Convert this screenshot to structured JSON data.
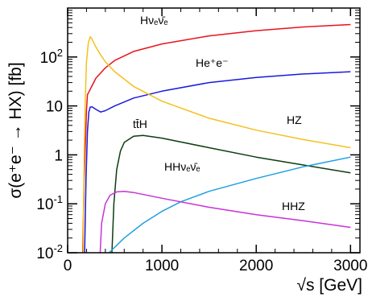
{
  "chart_data": {
    "type": "line",
    "ylabel": "σ(e⁺e⁻ → HX) [fb]",
    "xlabel": "√s [GeV]",
    "xlim": [
      0,
      3100
    ],
    "ylim": [
      0.01,
      1000
    ],
    "yscale": "log",
    "grid": false,
    "x_ticks": [
      {
        "value": 0,
        "label": "0"
      },
      {
        "value": 1000,
        "label": "1000"
      },
      {
        "value": 2000,
        "label": "2000"
      },
      {
        "value": 3000,
        "label": "3000"
      }
    ],
    "y_ticks": [
      {
        "value": 0.01,
        "label": "10-2",
        "base": "10",
        "exp": "-2"
      },
      {
        "value": 0.1,
        "label": "10-1",
        "base": "10",
        "exp": "-1"
      },
      {
        "value": 1,
        "label": "1",
        "base": "1",
        "exp": ""
      },
      {
        "value": 10,
        "label": "10",
        "base": "10",
        "exp": ""
      },
      {
        "value": 100,
        "label": "102",
        "base": "10",
        "exp": "2"
      }
    ],
    "series": [
      {
        "name": "Hνₑν̄ₑ",
        "color": "#e8141c",
        "points": [
          [
            160,
            0.01
          ],
          [
            175,
            0.3
          ],
          [
            190,
            2
          ],
          [
            200,
            8
          ],
          [
            210,
            17
          ],
          [
            230,
            20
          ],
          [
            250,
            24
          ],
          [
            300,
            37
          ],
          [
            400,
            60
          ],
          [
            500,
            85
          ],
          [
            700,
            130
          ],
          [
            1000,
            185
          ],
          [
            1500,
            270
          ],
          [
            2000,
            345
          ],
          [
            2500,
            410
          ],
          [
            3000,
            460
          ]
        ]
      },
      {
        "name": "He⁺e⁻",
        "color": "#1a1adc",
        "points": [
          [
            180,
            0.01
          ],
          [
            195,
            0.3
          ],
          [
            210,
            3
          ],
          [
            225,
            7.5
          ],
          [
            240,
            9.5
          ],
          [
            260,
            9.6
          ],
          [
            300,
            8.5
          ],
          [
            350,
            7.5
          ],
          [
            400,
            8
          ],
          [
            500,
            10
          ],
          [
            700,
            14.5
          ],
          [
            1000,
            20
          ],
          [
            1500,
            30
          ],
          [
            2000,
            38
          ],
          [
            2500,
            45
          ],
          [
            3000,
            50
          ]
        ]
      },
      {
        "name": "HZ",
        "color": "#f5c01e",
        "points": [
          [
            165,
            0.01
          ],
          [
            175,
            1
          ],
          [
            185,
            10
          ],
          [
            200,
            80
          ],
          [
            220,
            200
          ],
          [
            240,
            260
          ],
          [
            260,
            230
          ],
          [
            300,
            160
          ],
          [
            350,
            110
          ],
          [
            400,
            80
          ],
          [
            500,
            50
          ],
          [
            700,
            25
          ],
          [
            1000,
            12.5
          ],
          [
            1500,
            5.6
          ],
          [
            2000,
            3.2
          ],
          [
            2500,
            2.05
          ],
          [
            3000,
            1.4
          ]
        ]
      },
      {
        "name": "tt̄H",
        "color": "#0c3d10",
        "points": [
          [
            470,
            0.01
          ],
          [
            490,
            0.1
          ],
          [
            520,
            0.5
          ],
          [
            560,
            1.2
          ],
          [
            600,
            1.8
          ],
          [
            700,
            2.4
          ],
          [
            800,
            2.5
          ],
          [
            1000,
            2.2
          ],
          [
            1500,
            1.4
          ],
          [
            2000,
            0.9
          ],
          [
            2500,
            0.62
          ],
          [
            3000,
            0.43
          ]
        ]
      },
      {
        "name": "HHνₑν̄ₑ",
        "color": "#1fa0e0",
        "points": [
          [
            440,
            0.01
          ],
          [
            500,
            0.013
          ],
          [
            600,
            0.02
          ],
          [
            800,
            0.04
          ],
          [
            1000,
            0.07
          ],
          [
            1200,
            0.11
          ],
          [
            1500,
            0.18
          ],
          [
            2000,
            0.33
          ],
          [
            2500,
            0.57
          ],
          [
            3000,
            0.9
          ]
        ]
      },
      {
        "name": "HHZ",
        "color": "#c832d8",
        "points": [
          [
            345,
            0.01
          ],
          [
            360,
            0.04
          ],
          [
            400,
            0.1
          ],
          [
            450,
            0.15
          ],
          [
            520,
            0.175
          ],
          [
            600,
            0.18
          ],
          [
            700,
            0.17
          ],
          [
            1000,
            0.13
          ],
          [
            1500,
            0.085
          ],
          [
            2000,
            0.06
          ],
          [
            2500,
            0.045
          ],
          [
            3000,
            0.033
          ]
        ]
      }
    ]
  }
}
